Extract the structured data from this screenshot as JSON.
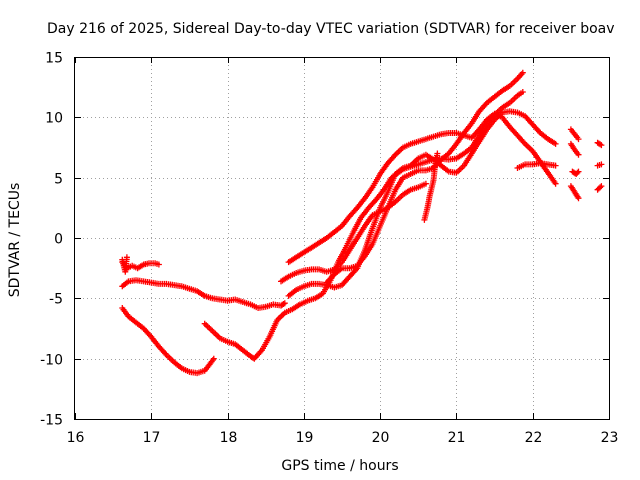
{
  "chart_data": {
    "type": "scatter",
    "title": "Day 216 of 2025, Sidereal Day-to-day VTEC variation (SDTVAR) for receiver boav",
    "xlabel": "GPS time / hours",
    "ylabel": "SDTVAR / TECUs",
    "xlim": [
      16,
      23
    ],
    "ylim": [
      -15,
      15
    ],
    "xticks": [
      16,
      17,
      18,
      19,
      20,
      21,
      22,
      23
    ],
    "yticks": [
      -15,
      -10,
      -5,
      0,
      5,
      10,
      15
    ],
    "xtick_labels": [
      "16",
      "17",
      "18",
      "19",
      "20",
      "21",
      "22",
      "23"
    ],
    "ytick_labels": [
      "-15",
      "-10",
      "-5",
      "0",
      "5",
      "10",
      "15"
    ],
    "grid": true,
    "marker": "+",
    "color": "#ff0000",
    "series": [
      {
        "name": "s1",
        "points": [
          [
            16.62,
            -2.0
          ],
          [
            16.68,
            -2.5
          ],
          [
            16.75,
            -2.3
          ],
          [
            16.82,
            -2.5
          ],
          [
            16.9,
            -2.2
          ],
          [
            16.97,
            -2.1
          ],
          [
            17.05,
            -2.1
          ],
          [
            17.1,
            -2.2
          ]
        ]
      },
      {
        "name": "s2",
        "points": [
          [
            16.62,
            -1.8
          ],
          [
            16.66,
            -2.8
          ],
          [
            16.68,
            -1.6
          ]
        ]
      },
      {
        "name": "s3",
        "points": [
          [
            16.62,
            -4.0
          ],
          [
            16.7,
            -3.6
          ],
          [
            16.8,
            -3.5
          ],
          [
            16.9,
            -3.6
          ],
          [
            17.0,
            -3.7
          ],
          [
            17.1,
            -3.8
          ],
          [
            17.2,
            -3.8
          ],
          [
            17.3,
            -3.9
          ],
          [
            17.4,
            -4.0
          ],
          [
            17.5,
            -4.2
          ],
          [
            17.6,
            -4.4
          ],
          [
            17.7,
            -4.8
          ],
          [
            17.8,
            -5.0
          ],
          [
            17.9,
            -5.1
          ],
          [
            18.0,
            -5.2
          ],
          [
            18.1,
            -5.1
          ],
          [
            18.2,
            -5.3
          ],
          [
            18.3,
            -5.5
          ],
          [
            18.4,
            -5.8
          ],
          [
            18.5,
            -5.7
          ],
          [
            18.6,
            -5.5
          ],
          [
            18.7,
            -5.6
          ],
          [
            18.75,
            -5.4
          ]
        ]
      },
      {
        "name": "s4",
        "points": [
          [
            16.62,
            -5.8
          ],
          [
            16.7,
            -6.5
          ],
          [
            16.8,
            -7.0
          ],
          [
            16.9,
            -7.5
          ],
          [
            17.0,
            -8.2
          ],
          [
            17.1,
            -9.0
          ],
          [
            17.2,
            -9.7
          ],
          [
            17.3,
            -10.3
          ],
          [
            17.4,
            -10.8
          ],
          [
            17.5,
            -11.1
          ],
          [
            17.6,
            -11.2
          ],
          [
            17.7,
            -11.0
          ],
          [
            17.75,
            -10.6
          ],
          [
            17.82,
            -10.0
          ]
        ]
      },
      {
        "name": "s5",
        "points": [
          [
            17.7,
            -7.1
          ],
          [
            17.8,
            -7.7
          ],
          [
            17.9,
            -8.3
          ],
          [
            18.0,
            -8.6
          ],
          [
            18.1,
            -8.8
          ],
          [
            18.2,
            -9.3
          ],
          [
            18.3,
            -9.8
          ],
          [
            18.35,
            -10.0
          ],
          [
            18.45,
            -9.3
          ],
          [
            18.55,
            -8.2
          ],
          [
            18.65,
            -6.8
          ],
          [
            18.75,
            -6.2
          ],
          [
            18.85,
            -5.9
          ],
          [
            18.95,
            -5.5
          ],
          [
            19.05,
            -5.2
          ],
          [
            19.15,
            -5.0
          ],
          [
            19.25,
            -4.6
          ],
          [
            19.35,
            -3.5
          ],
          [
            19.45,
            -2.0
          ],
          [
            19.55,
            -0.8
          ],
          [
            19.65,
            0.5
          ],
          [
            19.75,
            1.7
          ],
          [
            19.85,
            2.5
          ],
          [
            19.95,
            3.2
          ],
          [
            20.05,
            4.0
          ],
          [
            20.15,
            5.0
          ],
          [
            20.3,
            5.7
          ],
          [
            20.45,
            6.0
          ],
          [
            20.6,
            6.3
          ],
          [
            20.75,
            6.6
          ],
          [
            20.9,
            6.5
          ],
          [
            21.0,
            6.6
          ],
          [
            21.1,
            7.0
          ],
          [
            21.2,
            7.5
          ],
          [
            21.3,
            8.5
          ],
          [
            21.4,
            9.5
          ],
          [
            21.5,
            10.2
          ],
          [
            21.6,
            10.8
          ],
          [
            21.7,
            11.2
          ],
          [
            21.8,
            11.8
          ],
          [
            21.87,
            12.1
          ]
        ]
      },
      {
        "name": "s6",
        "points": [
          [
            18.8,
            -2.0
          ],
          [
            18.9,
            -1.6
          ],
          [
            19.0,
            -1.2
          ],
          [
            19.1,
            -0.8
          ],
          [
            19.2,
            -0.4
          ],
          [
            19.3,
            0.0
          ],
          [
            19.4,
            0.5
          ],
          [
            19.5,
            1.0
          ],
          [
            19.6,
            1.8
          ],
          [
            19.7,
            2.5
          ],
          [
            19.8,
            3.3
          ],
          [
            19.9,
            4.2
          ],
          [
            20.0,
            5.3
          ],
          [
            20.1,
            6.2
          ],
          [
            20.2,
            6.9
          ],
          [
            20.3,
            7.5
          ],
          [
            20.4,
            7.8
          ],
          [
            20.5,
            8.0
          ],
          [
            20.6,
            8.2
          ],
          [
            20.7,
            8.4
          ],
          [
            20.8,
            8.6
          ],
          [
            20.9,
            8.7
          ],
          [
            21.0,
            8.7
          ],
          [
            21.1,
            8.5
          ],
          [
            21.2,
            8.3
          ],
          [
            21.3,
            9.0
          ],
          [
            21.4,
            9.8
          ],
          [
            21.5,
            10.3
          ],
          [
            21.6,
            10.0
          ],
          [
            21.7,
            9.2
          ],
          [
            21.8,
            8.5
          ],
          [
            21.9,
            7.8
          ],
          [
            22.0,
            7.2
          ],
          [
            22.1,
            6.3
          ],
          [
            22.2,
            5.4
          ],
          [
            22.3,
            4.5
          ]
        ]
      },
      {
        "name": "s7",
        "points": [
          [
            18.7,
            -3.6
          ],
          [
            18.8,
            -3.2
          ],
          [
            18.9,
            -2.9
          ],
          [
            19.0,
            -2.7
          ],
          [
            19.1,
            -2.6
          ],
          [
            19.2,
            -2.6
          ],
          [
            19.3,
            -2.8
          ],
          [
            19.4,
            -2.6
          ],
          [
            19.5,
            -2.0
          ],
          [
            19.6,
            -1.0
          ],
          [
            19.7,
            0.0
          ],
          [
            19.8,
            1.0
          ],
          [
            19.9,
            1.9
          ],
          [
            20.0,
            2.2
          ],
          [
            20.1,
            2.5
          ],
          [
            20.2,
            3.0
          ],
          [
            20.3,
            3.6
          ],
          [
            20.4,
            4.0
          ],
          [
            20.5,
            4.2
          ],
          [
            20.6,
            4.5
          ]
        ]
      },
      {
        "name": "s8",
        "points": [
          [
            18.8,
            -4.8
          ],
          [
            18.9,
            -4.3
          ],
          [
            19.0,
            -4.0
          ],
          [
            19.1,
            -3.8
          ],
          [
            19.2,
            -3.8
          ],
          [
            19.3,
            -3.9
          ],
          [
            19.4,
            -4.1
          ],
          [
            19.5,
            -3.9
          ],
          [
            19.6,
            -3.2
          ],
          [
            19.7,
            -2.5
          ],
          [
            19.8,
            -1.0
          ],
          [
            19.9,
            0.8
          ],
          [
            20.0,
            2.5
          ],
          [
            20.1,
            3.8
          ],
          [
            20.2,
            5.3
          ],
          [
            20.3,
            5.8
          ],
          [
            20.4,
            6.0
          ],
          [
            20.5,
            6.6
          ],
          [
            20.6,
            6.9
          ],
          [
            20.7,
            6.5
          ],
          [
            20.8,
            6.0
          ],
          [
            20.9,
            5.5
          ],
          [
            21.0,
            5.4
          ],
          [
            21.1,
            6.0
          ],
          [
            21.2,
            7.0
          ],
          [
            21.3,
            8.0
          ],
          [
            21.4,
            9.0
          ],
          [
            21.5,
            9.8
          ],
          [
            21.6,
            10.4
          ],
          [
            21.7,
            10.5
          ],
          [
            21.8,
            10.4
          ],
          [
            21.9,
            10.1
          ],
          [
            22.0,
            9.4
          ],
          [
            22.1,
            8.7
          ],
          [
            22.2,
            8.2
          ],
          [
            22.3,
            7.8
          ]
        ]
      },
      {
        "name": "s9",
        "points": [
          [
            19.3,
            -3.7
          ],
          [
            19.4,
            -3.0
          ],
          [
            19.5,
            -2.5
          ],
          [
            19.6,
            -2.5
          ],
          [
            19.7,
            -2.3
          ],
          [
            19.8,
            -1.5
          ],
          [
            19.9,
            -0.5
          ],
          [
            20.0,
            1.0
          ],
          [
            20.1,
            2.5
          ],
          [
            20.2,
            4.0
          ],
          [
            20.3,
            5.0
          ],
          [
            20.4,
            5.3
          ],
          [
            20.5,
            5.6
          ],
          [
            20.6,
            5.6
          ],
          [
            20.7,
            5.8
          ],
          [
            20.8,
            6.5
          ],
          [
            20.9,
            7.0
          ],
          [
            21.0,
            7.8
          ],
          [
            21.1,
            8.7
          ],
          [
            21.2,
            9.5
          ],
          [
            21.3,
            10.5
          ],
          [
            21.4,
            11.2
          ],
          [
            21.5,
            11.7
          ],
          [
            21.6,
            12.2
          ],
          [
            21.7,
            12.6
          ],
          [
            21.8,
            13.2
          ],
          [
            21.87,
            13.7
          ]
        ]
      },
      {
        "name": "s10",
        "points": [
          [
            20.58,
            1.5
          ],
          [
            20.62,
            2.5
          ],
          [
            20.65,
            3.5
          ],
          [
            20.7,
            4.8
          ],
          [
            20.72,
            6.0
          ],
          [
            20.75,
            7.0
          ]
        ]
      },
      {
        "name": "s11",
        "points": [
          [
            21.8,
            5.8
          ],
          [
            21.9,
            6.1
          ],
          [
            22.0,
            6.1
          ],
          [
            22.1,
            6.2
          ],
          [
            22.2,
            6.1
          ],
          [
            22.3,
            6.0
          ]
        ]
      },
      {
        "name": "s12",
        "points": [
          [
            22.5,
            9.0
          ],
          [
            22.55,
            8.6
          ],
          [
            22.6,
            8.2
          ]
        ]
      },
      {
        "name": "s13",
        "points": [
          [
            22.5,
            7.8
          ],
          [
            22.55,
            7.3
          ],
          [
            22.6,
            6.9
          ]
        ]
      },
      {
        "name": "s14",
        "points": [
          [
            22.52,
            5.5
          ],
          [
            22.57,
            5.3
          ],
          [
            22.6,
            5.5
          ]
        ]
      },
      {
        "name": "s15",
        "points": [
          [
            22.5,
            4.3
          ],
          [
            22.55,
            3.8
          ],
          [
            22.6,
            3.3
          ]
        ]
      },
      {
        "name": "s16",
        "points": [
          [
            22.85,
            7.9
          ],
          [
            22.9,
            7.7
          ]
        ]
      },
      {
        "name": "s17",
        "points": [
          [
            22.85,
            6.0
          ],
          [
            22.9,
            6.1
          ]
        ]
      },
      {
        "name": "s18",
        "points": [
          [
            22.85,
            4.0
          ],
          [
            22.9,
            4.3
          ]
        ]
      }
    ]
  }
}
